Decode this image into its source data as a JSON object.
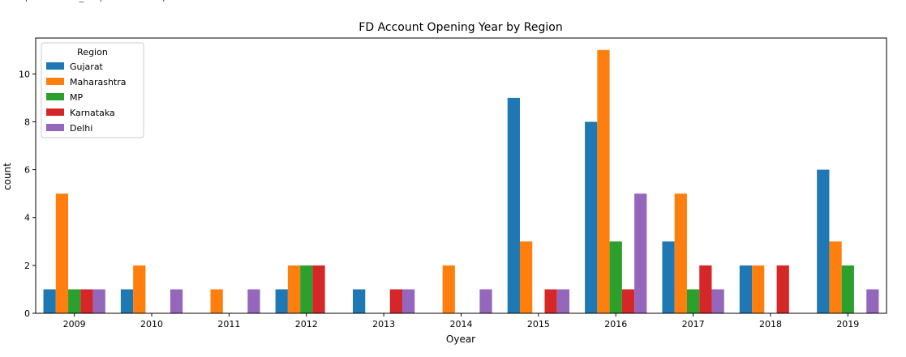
{
  "chart_data": {
    "type": "bar",
    "title": "FD Account Opening Year by Region",
    "xlabel": "Oyear",
    "ylabel": "count",
    "ylim": [
      0,
      11.5
    ],
    "yticks": [
      0,
      2,
      4,
      6,
      8,
      10
    ],
    "grid": false,
    "legend": {
      "title": "Region",
      "placement": "top-left"
    },
    "categories": [
      "2009",
      "2010",
      "2011",
      "2012",
      "2013",
      "2014",
      "2015",
      "2016",
      "2017",
      "2018",
      "2019"
    ],
    "series": [
      {
        "name": "Gujarat",
        "color": "#1f77b4",
        "values": [
          1,
          1,
          0,
          1,
          1,
          0,
          9,
          8,
          3,
          2,
          6
        ]
      },
      {
        "name": "Maharashtra",
        "color": "#ff7f0e",
        "values": [
          5,
          2,
          1,
          2,
          0,
          2,
          3,
          11,
          5,
          2,
          3
        ]
      },
      {
        "name": "MP",
        "color": "#2ca02c",
        "values": [
          1,
          0,
          0,
          2,
          0,
          0,
          0,
          3,
          1,
          0,
          2
        ]
      },
      {
        "name": "Karnataka",
        "color": "#d62728",
        "values": [
          1,
          0,
          0,
          2,
          1,
          0,
          1,
          1,
          2,
          2,
          0
        ]
      },
      {
        "name": "Delhi",
        "color": "#9467bd",
        "values": [
          1,
          1,
          1,
          0,
          1,
          1,
          1,
          5,
          1,
          0,
          1
        ]
      }
    ]
  }
}
